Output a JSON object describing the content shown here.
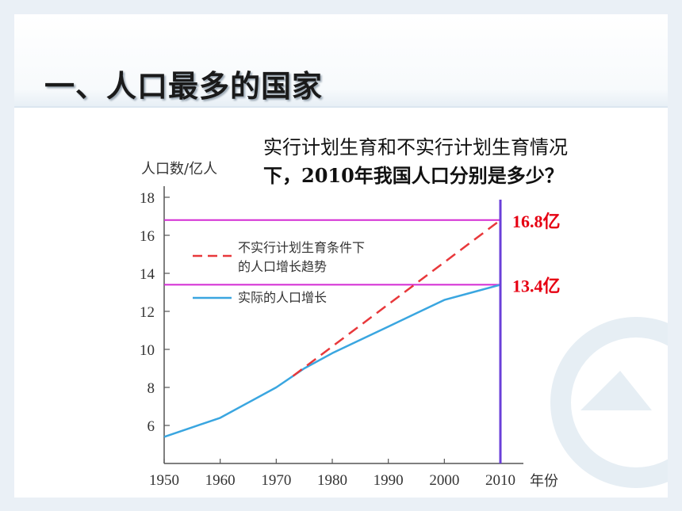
{
  "slide": {
    "title": "一、人口最多的国家",
    "question_line1": "实行计划生育和不实行计划生育情况",
    "question_line2": "下，2010年我国人口分别是多少？"
  },
  "chart_data": {
    "type": "line",
    "ylabel": "人口数/亿人",
    "xlabel": "年份",
    "xlim": [
      1950,
      2010
    ],
    "ylim": [
      4,
      18
    ],
    "x_ticks": [
      1950,
      1960,
      1970,
      1980,
      1990,
      2000,
      2010
    ],
    "y_ticks": [
      6,
      8,
      10,
      12,
      14,
      16,
      18
    ],
    "legend": {
      "placement": "top-left",
      "entries": [
        {
          "label_line1": "不实行计划生育条件下",
          "label_line2": "的人口增长趋势",
          "style": "dashed",
          "color": "#e8383b"
        },
        {
          "label_line1": "实际的人口增长",
          "label_line2": "",
          "style": "solid",
          "color": "#3aa6e0"
        }
      ]
    },
    "series": [
      {
        "key": "actual",
        "color": "#3aa6e0",
        "style": "solid",
        "x": [
          1950,
          1955,
          1960,
          1965,
          1970,
          1975,
          1980,
          1985,
          1990,
          1995,
          2000,
          2005,
          2010
        ],
        "y": [
          5.4,
          5.9,
          6.4,
          7.2,
          8.0,
          9.0,
          9.8,
          10.5,
          11.2,
          11.9,
          12.6,
          13.0,
          13.4
        ]
      },
      {
        "key": "projected",
        "color": "#e8383b",
        "style": "dashed",
        "x": [
          1973,
          2010
        ],
        "y": [
          8.6,
          16.8
        ]
      }
    ],
    "markers": [
      {
        "value": 16.8,
        "label": "16.8亿",
        "color": "#d42bd4"
      },
      {
        "value": 13.4,
        "label": "13.4亿",
        "color": "#d42bd4"
      }
    ],
    "label_color": "#e60012",
    "vertical_marker": {
      "x": 2010,
      "color": "#6a3fd9"
    },
    "axis_color": "#555555"
  }
}
